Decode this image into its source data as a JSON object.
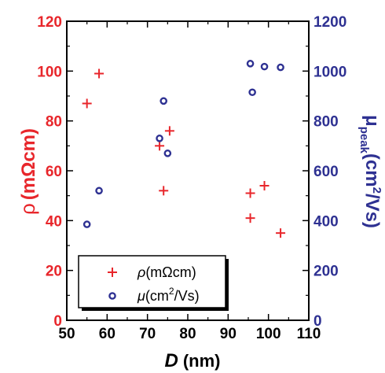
{
  "chart_data": {
    "type": "scatter",
    "title": "",
    "xlabel": {
      "symbol": "D",
      "unit": "(nm)"
    },
    "ylabel_left": {
      "symbol": "ρ",
      "unit": "(mΩcm)"
    },
    "ylabel_right": {
      "symbol": "μ",
      "subscript": "peak",
      "unit": "(cm",
      "sup": "2",
      "unit_end": "/Vs)"
    },
    "xlim": [
      50,
      110
    ],
    "ylim_left": [
      0,
      120
    ],
    "ylim_right": [
      0,
      1200
    ],
    "x_ticks": [
      "50",
      "60",
      "70",
      "80",
      "90",
      "100",
      "110"
    ],
    "y_left_ticks": [
      "0",
      "20",
      "40",
      "60",
      "80",
      "100",
      "120"
    ],
    "y_right_ticks": [
      "0",
      "200",
      "400",
      "600",
      "800",
      "1000",
      "1200"
    ],
    "grid": false,
    "legend_position": "bottom-left",
    "colors": {
      "rho": "#e8262b",
      "mu": "#2e3192",
      "axis": "#000000"
    },
    "series": [
      {
        "key": "rho",
        "name": "ρ(mΩcm)",
        "legend_symbol": "ρ",
        "legend_unit": "(mΩcm)",
        "marker": "plus",
        "axis": "left",
        "x": [
          55,
          58,
          73,
          74,
          75.5,
          95.5,
          95.5,
          99,
          103
        ],
        "y": [
          87,
          99,
          70,
          52,
          76,
          51,
          41,
          54,
          35
        ]
      },
      {
        "key": "mu",
        "name": "μ(cm²/Vs)",
        "legend_symbol": "μ",
        "legend_unit": "(cm",
        "legend_sup": "2",
        "legend_unit_end": "/Vs)",
        "marker": "circle",
        "axis": "right",
        "x": [
          55,
          58,
          73,
          74,
          75,
          95.5,
          96,
          99,
          103
        ],
        "y": [
          385,
          520,
          730,
          880,
          670,
          1030,
          915,
          1018,
          1015
        ]
      }
    ]
  }
}
